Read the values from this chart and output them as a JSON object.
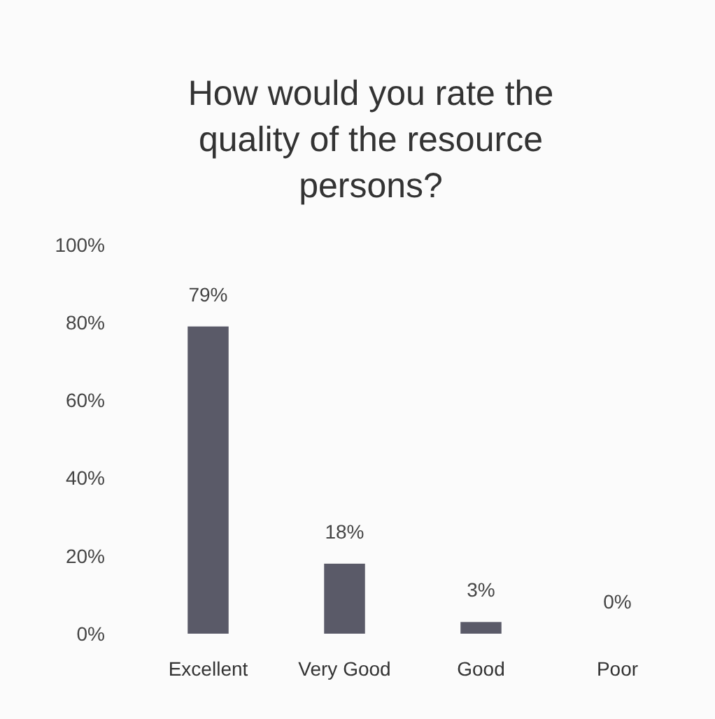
{
  "chart_data": {
    "type": "bar",
    "title": "How would you rate the quality of the resource persons?",
    "categories": [
      "Excellent",
      "Very Good",
      "Good",
      "Poor"
    ],
    "values": [
      79,
      18,
      3,
      0
    ],
    "color": "#5a5a68",
    "value_labels": [
      "79%",
      "18%",
      "3%",
      "0%"
    ],
    "ylim": [
      0,
      100
    ],
    "yticks": [
      {
        "value": 0,
        "label": "0%"
      },
      {
        "value": 20,
        "label": "20%"
      },
      {
        "value": 40,
        "label": "40%"
      },
      {
        "value": 60,
        "label": "60%"
      },
      {
        "value": 80,
        "label": "80%"
      },
      {
        "value": 100,
        "label": "100%"
      }
    ],
    "grid": false
  }
}
